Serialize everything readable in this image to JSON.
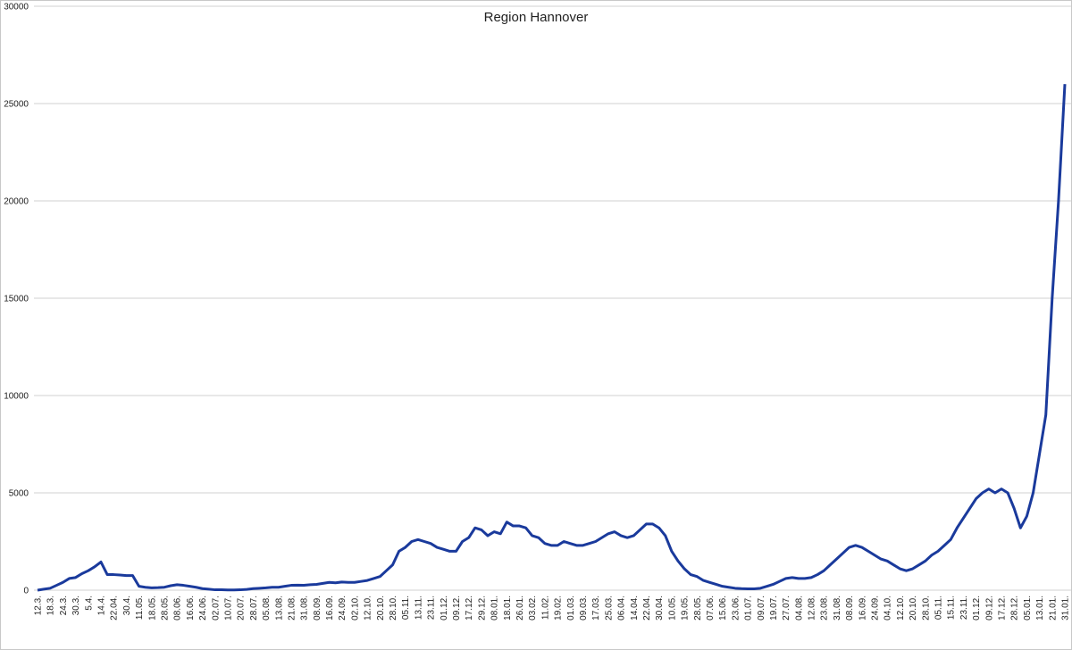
{
  "chart_data": {
    "type": "line",
    "title": "Region Hannover",
    "categories": [
      "12.3.",
      null,
      "18.3.",
      null,
      "24.3.",
      null,
      "30.3.",
      null,
      "5.4.",
      null,
      "14.4.",
      null,
      "22.04.",
      null,
      "30.4.",
      null,
      "11.05.",
      null,
      "18.05.",
      null,
      "28.05.",
      null,
      "08.06.",
      null,
      "16.06.",
      null,
      "24.06.",
      null,
      "02.07.",
      null,
      "10.07.",
      null,
      "20.07.",
      null,
      "28.07.",
      null,
      "05.08.",
      null,
      "13.08.",
      null,
      "21.08.",
      null,
      "31.08.",
      null,
      "08.09.",
      null,
      "16.09.",
      null,
      "24.09.",
      null,
      "02.10.",
      null,
      "12.10.",
      null,
      "20.10.",
      null,
      "28.10.",
      null,
      "05.11.",
      null,
      "13.11.",
      null,
      "23.11.",
      null,
      "01.12.",
      null,
      "09.12.",
      null,
      "17.12.",
      null,
      "29.12.",
      null,
      "08.01.",
      null,
      "18.01.",
      null,
      "26.01.",
      null,
      "03.02.",
      null,
      "11.02.",
      null,
      "19.02.",
      null,
      "01.03.",
      null,
      "09.03.",
      null,
      "17.03.",
      null,
      "25.03.",
      null,
      "06.04.",
      null,
      "14.04.",
      null,
      "22.04.",
      null,
      "30.04.",
      null,
      "10.05.",
      null,
      "19.05.",
      null,
      "28.05.",
      null,
      "07.06.",
      null,
      "15.06.",
      null,
      "23.06.",
      null,
      "01.07.",
      null,
      "09.07.",
      null,
      "19.07.",
      null,
      "27.07.",
      null,
      "04.08.",
      null,
      "12.08.",
      null,
      "23.08.",
      null,
      "31.08.",
      null,
      "08.09.",
      null,
      "16.09.",
      null,
      "24.09.",
      null,
      "04.10.",
      null,
      "12.10.",
      null,
      "20.10.",
      null,
      "28.10.",
      null,
      "05.11.",
      null,
      "15.11.",
      null,
      "23.11.",
      null,
      "01.12.",
      null,
      "09.12.",
      null,
      "17.12.",
      null,
      "28.12.",
      null,
      "05.01.",
      null,
      "13.01.",
      null,
      "21.01.",
      null,
      "31.01."
    ],
    "series": [
      {
        "name": "Region Hannover",
        "color": "#1a3a9c",
        "values": [
          0,
          50,
          100,
          250,
          400,
          600,
          650,
          850,
          1000,
          1200,
          1450,
          800,
          800,
          780,
          750,
          750,
          200,
          150,
          120,
          130,
          150,
          230,
          280,
          250,
          200,
          150,
          80,
          50,
          20,
          20,
          10,
          10,
          20,
          40,
          80,
          100,
          120,
          150,
          150,
          200,
          250,
          260,
          250,
          280,
          300,
          350,
          400,
          380,
          420,
          400,
          400,
          450,
          500,
          600,
          700,
          1000,
          1300,
          2000,
          2200,
          2500,
          2600,
          2500,
          2400,
          2200,
          2100,
          2000,
          2000,
          2500,
          2700,
          3200,
          3100,
          2800,
          3000,
          2900,
          3500,
          3300,
          3300,
          3200,
          2800,
          2700,
          2400,
          2300,
          2300,
          2500,
          2400,
          2300,
          2300,
          2400,
          2500,
          2700,
          2900,
          3000,
          2800,
          2700,
          2800,
          3100,
          3400,
          3400,
          3200,
          2800,
          2000,
          1500,
          1100,
          800,
          700,
          500,
          400,
          300,
          200,
          150,
          100,
          80,
          70,
          70,
          100,
          200,
          300,
          450,
          600,
          650,
          600,
          600,
          650,
          800,
          1000,
          1300,
          1600,
          1900,
          2200,
          2300,
          2200,
          2000,
          1800,
          1600,
          1500,
          1300,
          1100,
          1000,
          1100,
          1300,
          1500,
          1800,
          2000,
          2300,
          2600,
          3200,
          3700,
          4200,
          4700,
          5000,
          5200,
          5000,
          5200,
          5000,
          4200,
          3200,
          3800,
          5000,
          7000,
          9000,
          15000,
          20000,
          26000
        ]
      }
    ],
    "ylim": [
      0,
      30000
    ],
    "yticks": [
      0,
      5000,
      10000,
      15000,
      20000,
      25000,
      30000
    ],
    "grid": true
  }
}
